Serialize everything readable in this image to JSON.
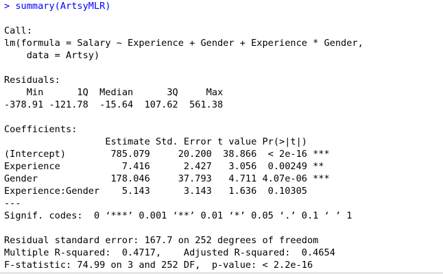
{
  "console": {
    "input_line": "> summary(ArtsyMLR)",
    "output_lines": [
      "",
      "Call:",
      "lm(formula = Salary ~ Experience + Gender + Experience * Gender,",
      "    data = Artsy)",
      "",
      "Residuals:",
      "    Min      1Q  Median      3Q     Max ",
      "-378.91 -121.78  -15.64  107.62  561.38 ",
      "",
      "Coefficients:",
      "                  Estimate Std. Error t value Pr(>|t|)    ",
      "(Intercept)        785.079     20.200  38.866  < 2e-16 ***",
      "Experience           7.416      2.427   3.056  0.00249 ** ",
      "Gender             178.046     37.793   4.711 4.07e-06 ***",
      "Experience:Gender    5.143      3.143   1.636  0.10305    ",
      "---",
      "Signif. codes:  0 ‘***’ 0.001 ‘**’ 0.01 ‘*’ 0.05 ‘.’ 0.1 ‘ ’ 1",
      "",
      "Residual standard error: 167.7 on 252 degrees of freedom",
      "Multiple R-squared:  0.4717,\tAdjusted R-squared:  0.4654 ",
      "F-statistic: 74.99 on 3 and 252 DF,  p-value: < 2.2e-16"
    ]
  },
  "colors": {
    "input": "#0000ff",
    "output": "#000000",
    "background": "#ffffff"
  }
}
